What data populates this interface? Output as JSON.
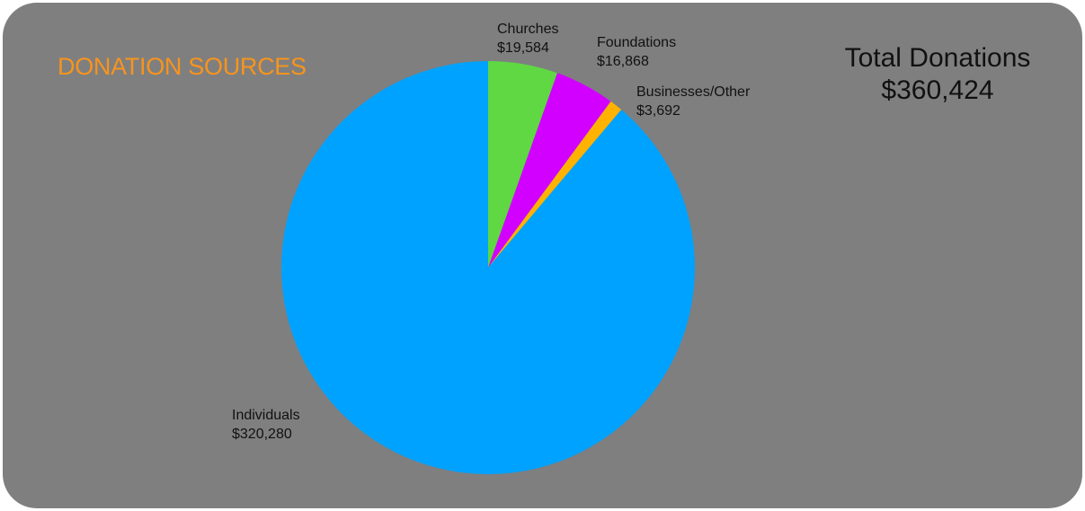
{
  "chart_data": {
    "type": "pie",
    "title": "DONATION SOURCES",
    "total_label": "Total Donations",
    "total_value": "$360,424",
    "total": 360424,
    "slices": [
      {
        "label": "Churches",
        "value": 19584,
        "value_text": "$19,584",
        "color": "#5fd843"
      },
      {
        "label": "Foundations",
        "value": 16868,
        "value_text": "$16,868",
        "color": "#d200ff"
      },
      {
        "label": "Businesses/Other",
        "value": 3692,
        "value_text": "$3,692",
        "color": "#ffb300"
      },
      {
        "label": "Individuals",
        "value": 320280,
        "value_text": "$320,280",
        "color": "#00a2ff"
      }
    ],
    "start_angle_deg": 0,
    "direction": "clockwise",
    "legend": "none"
  },
  "colors": {
    "background": "#7f7f7f",
    "title": "#f7941d",
    "text": "#111111"
  }
}
